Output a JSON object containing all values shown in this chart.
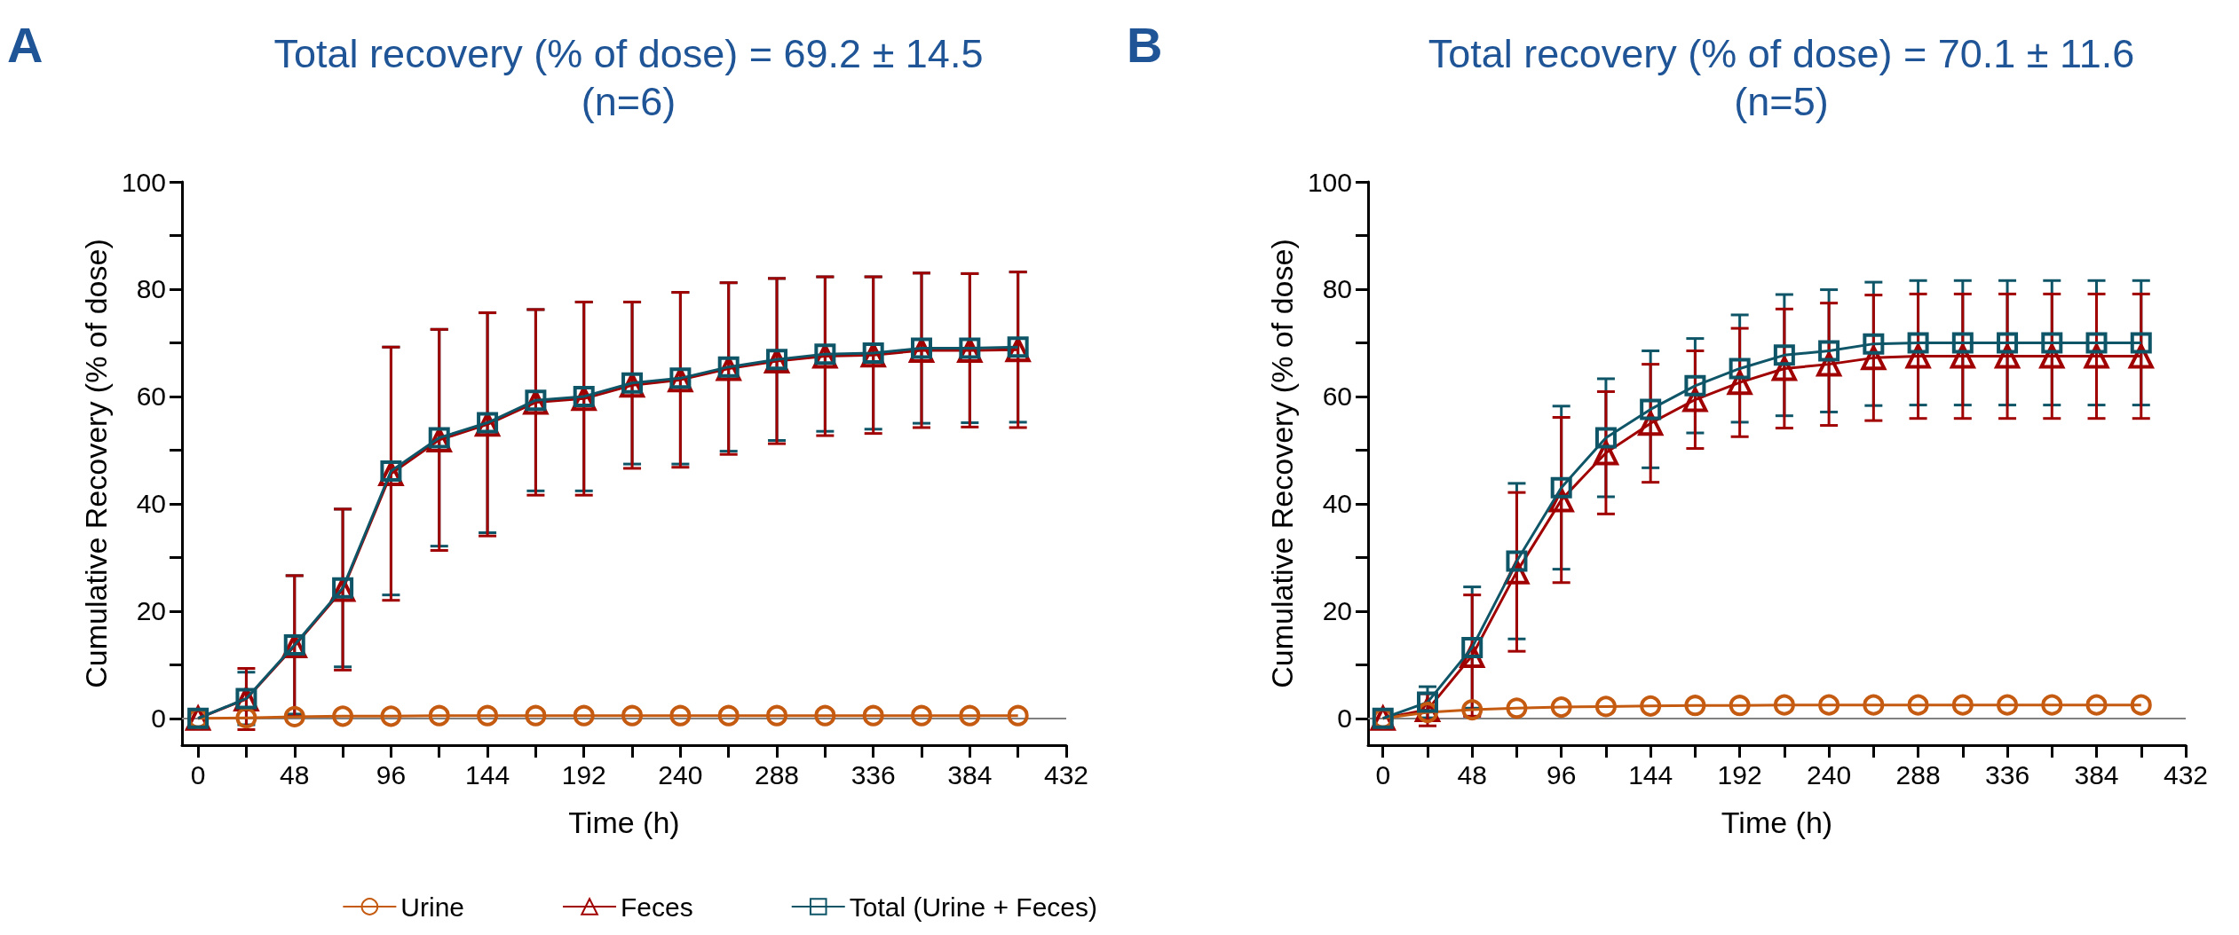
{
  "chart_data": [
    {
      "type": "line",
      "title": "Total recovery (% of dose) = 69.2 ± 14.5\n(n=6)",
      "xlabel": "Time (h)",
      "ylabel": "Cumulative Recovery (% of dose)",
      "annotations": [
        "A"
      ],
      "x": [
        0,
        24,
        48,
        72,
        96,
        120,
        144,
        168,
        192,
        216,
        240,
        264,
        288,
        312,
        336,
        360,
        384,
        408
      ],
      "series": [
        {
          "name": "Urine",
          "color": "#c55a11",
          "marker": "circle",
          "values": [
            0,
            0.1,
            0.3,
            0.4,
            0.4,
            0.5,
            0.5,
            0.5,
            0.5,
            0.5,
            0.5,
            0.5,
            0.5,
            0.5,
            0.5,
            0.5,
            0.5,
            0.5
          ]
        },
        {
          "name": "Feces",
          "color": "#a00000",
          "marker": "triangle",
          "values": [
            0,
            3.6,
            13.5,
            24,
            45.6,
            51.9,
            54.8,
            58.9,
            59.6,
            62.1,
            63.1,
            65.2,
            66.6,
            67.5,
            67.7,
            68.6,
            68.6,
            68.7
          ],
          "errors": [
            null,
            5.7,
            13.1,
            15,
            23.6,
            20.6,
            20.8,
            17.3,
            18,
            15.5,
            16.3,
            16,
            15.4,
            14.8,
            14.6,
            14.4,
            14.3,
            14.5
          ]
        },
        {
          "name": "Total (Urine + Feces)",
          "color": "#0f5568",
          "marker": "square",
          "values": [
            0,
            3.7,
            13.7,
            24.3,
            46.1,
            52.3,
            55.1,
            59.3,
            60,
            62.5,
            63.4,
            65.5,
            66.9,
            67.9,
            68.1,
            69,
            69,
            69.2
          ],
          "errors": [
            null,
            4.9,
            12.9,
            14.7,
            23.1,
            20.2,
            20.5,
            16.9,
            17.6,
            15.1,
            16,
            15.7,
            15.1,
            14.4,
            14.2,
            14,
            13.9,
            14
          ]
        }
      ],
      "xlim": [
        -8,
        432
      ],
      "xticks": [
        0,
        {
          "value": 24,
          "label": null
        },
        48,
        {
          "value": 72,
          "label": null
        },
        96,
        {
          "value": 120,
          "label": null
        },
        144,
        {
          "value": 168,
          "label": null
        },
        192,
        {
          "value": 216,
          "label": null
        },
        240,
        {
          "value": 264,
          "label": null
        },
        288,
        {
          "value": 312,
          "label": null
        },
        336,
        {
          "value": 360,
          "label": null
        },
        384,
        {
          "value": 408,
          "label": null
        },
        432
      ],
      "ylim": [
        -5,
        100
      ],
      "yticks": [
        0,
        {
          "value": 10,
          "label": null
        },
        20,
        {
          "value": 30,
          "label": null
        },
        40,
        {
          "value": 50,
          "label": null
        },
        60,
        {
          "value": 70,
          "label": null
        },
        80,
        {
          "value": 90,
          "label": null
        },
        100
      ],
      "ref_lines": [
        {
          "axis": "y",
          "value": 0,
          "color": "#808080"
        }
      ],
      "legend": "bottom",
      "grid": false
    },
    {
      "type": "line",
      "title": "Total recovery (% of dose) = 70.1 ± 11.6\n(n=5)",
      "xlabel": "Time (h)",
      "ylabel": "Cumulative Recovery (% of dose)",
      "annotations": [
        "B"
      ],
      "x": [
        0,
        24,
        48,
        72,
        96,
        120,
        144,
        168,
        192,
        216,
        240,
        264,
        288,
        312,
        336,
        360,
        384,
        408
      ],
      "series": [
        {
          "color": "#c55a11",
          "marker": "circle",
          "values": [
            0,
            1.1,
            1.6,
            1.9,
            2.1,
            2.2,
            2.3,
            2.4,
            2.4,
            2.5,
            2.5,
            2.5,
            2.5,
            2.5,
            2.5,
            2.5,
            2.5,
            2.5
          ]
        },
        {
          "color": "#a00000",
          "marker": "triangle",
          "values": [
            0,
            1.6,
            11.7,
            27.3,
            40.7,
            49.5,
            55,
            59.4,
            62.6,
            65.2,
            66,
            67.2,
            67.5,
            67.5,
            67.5,
            67.5,
            67.5,
            67.5
          ],
          "errors": [
            null,
            3,
            11.3,
            14.8,
            15.4,
            11.4,
            11,
            9.1,
            10.1,
            11.1,
            11.4,
            11.7,
            11.6,
            11.6,
            11.6,
            11.6,
            11.6,
            11.6
          ]
        },
        {
          "color": "#0f5568",
          "marker": "square",
          "values": [
            0,
            3,
            13.2,
            29.3,
            43,
            52.3,
            57.6,
            62,
            65.2,
            67.7,
            68.5,
            69.8,
            70,
            70,
            70,
            70,
            70,
            70
          ],
          "errors": [
            null,
            2.9,
            11.3,
            14.5,
            15.2,
            11,
            10.9,
            8.8,
            10,
            11.3,
            11.4,
            11.5,
            11.6,
            11.6,
            11.6,
            11.6,
            11.6,
            11.6
          ]
        }
      ],
      "xlim": [
        -8,
        432
      ],
      "xticks": [
        0,
        {
          "value": 24,
          "label": null
        },
        48,
        {
          "value": 72,
          "label": null
        },
        96,
        {
          "value": 120,
          "label": null
        },
        144,
        {
          "value": 168,
          "label": null
        },
        192,
        {
          "value": 216,
          "label": null
        },
        240,
        {
          "value": 264,
          "label": null
        },
        288,
        {
          "value": 312,
          "label": null
        },
        336,
        {
          "value": 360,
          "label": null
        },
        384,
        {
          "value": 408,
          "label": null
        },
        432
      ],
      "ylim": [
        -5,
        100
      ],
      "yticks": [
        0,
        {
          "value": 10,
          "label": null
        },
        20,
        {
          "value": 30,
          "label": null
        },
        40,
        {
          "value": 50,
          "label": null
        },
        60,
        {
          "value": 70,
          "label": null
        },
        80,
        {
          "value": 90,
          "label": null
        },
        100
      ],
      "ref_lines": [
        {
          "axis": "y",
          "value": 0,
          "color": "#808080"
        }
      ],
      "grid": false
    }
  ]
}
